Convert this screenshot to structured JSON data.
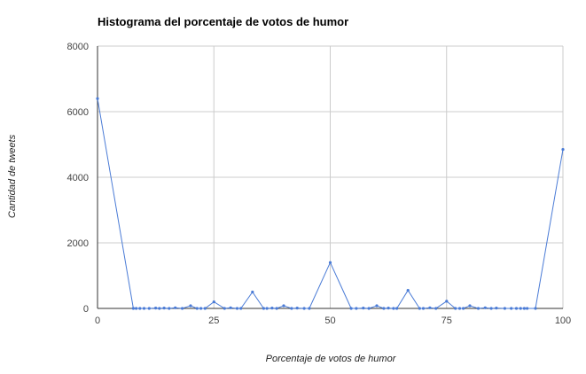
{
  "chart_data": {
    "type": "line",
    "title": "Histograma del porcentaje de votos de humor",
    "xlabel": "Porcentaje de votos de humor",
    "ylabel": "Cantidad de tweets",
    "xlim": [
      0,
      100
    ],
    "ylim": [
      0,
      8000
    ],
    "x_ticks": [
      "0",
      "25",
      "50",
      "75",
      "100"
    ],
    "y_ticks": [
      "0",
      "2000",
      "4000",
      "6000",
      "8000"
    ],
    "grid": true,
    "legend": "none",
    "series": [
      {
        "color": "#4a7bd6",
        "points": [
          [
            0,
            6400
          ],
          [
            7.7,
            0
          ],
          [
            8.3,
            0
          ],
          [
            9.1,
            0
          ],
          [
            10,
            0
          ],
          [
            11.1,
            0
          ],
          [
            12.5,
            10
          ],
          [
            13.3,
            0
          ],
          [
            14.3,
            10
          ],
          [
            15.4,
            0
          ],
          [
            16.7,
            20
          ],
          [
            18.2,
            0
          ],
          [
            20,
            80
          ],
          [
            21.4,
            0
          ],
          [
            22.2,
            0
          ],
          [
            23.1,
            0
          ],
          [
            25,
            200
          ],
          [
            27.3,
            0
          ],
          [
            28.6,
            20
          ],
          [
            30,
            0
          ],
          [
            30.8,
            0
          ],
          [
            33.3,
            500
          ],
          [
            35.7,
            0
          ],
          [
            36.4,
            0
          ],
          [
            37.5,
            10
          ],
          [
            38.5,
            0
          ],
          [
            40,
            80
          ],
          [
            41.7,
            0
          ],
          [
            42.9,
            10
          ],
          [
            44.4,
            0
          ],
          [
            45.5,
            0
          ],
          [
            50,
            1400
          ],
          [
            54.5,
            0
          ],
          [
            55.6,
            0
          ],
          [
            57.1,
            10
          ],
          [
            58.3,
            0
          ],
          [
            60,
            80
          ],
          [
            61.5,
            0
          ],
          [
            62.5,
            10
          ],
          [
            63.6,
            0
          ],
          [
            64.3,
            0
          ],
          [
            66.7,
            550
          ],
          [
            69.2,
            0
          ],
          [
            70,
            0
          ],
          [
            71.4,
            20
          ],
          [
            72.7,
            0
          ],
          [
            75,
            220
          ],
          [
            76.9,
            0
          ],
          [
            77.8,
            0
          ],
          [
            78.6,
            0
          ],
          [
            80,
            80
          ],
          [
            81.8,
            0
          ],
          [
            83.3,
            20
          ],
          [
            84.6,
            0
          ],
          [
            85.7,
            10
          ],
          [
            87.5,
            0
          ],
          [
            88.9,
            0
          ],
          [
            90,
            0
          ],
          [
            90.9,
            0
          ],
          [
            91.7,
            0
          ],
          [
            92.3,
            0
          ],
          [
            94.1,
            0
          ],
          [
            100,
            4850
          ]
        ]
      }
    ]
  }
}
